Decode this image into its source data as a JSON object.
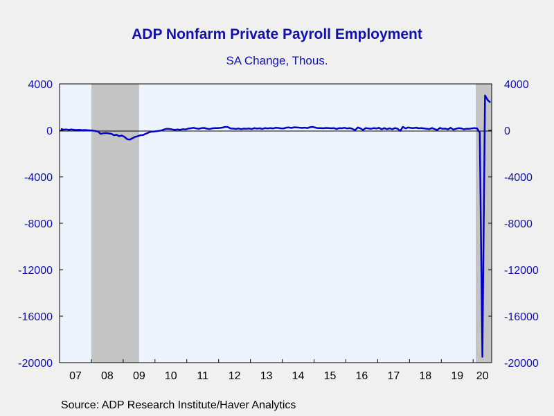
{
  "chart_data": {
    "type": "line",
    "title": "ADP Nonfarm Private Payroll Employment",
    "subtitle": "SA Change, Thous.",
    "source": "Source:  ADP Research Institute/Haver Analytics",
    "ylim": [
      -20000,
      4000
    ],
    "yticks": [
      4000,
      0,
      -4000,
      -8000,
      -12000,
      -16000,
      -20000
    ],
    "ytick_labels": [
      "4000",
      "0",
      "-4000",
      "-8000",
      "-12000",
      "-16000",
      "-20000"
    ],
    "xlim": [
      "2007-01",
      "2020-07"
    ],
    "xtick_labels": [
      "07",
      "08",
      "09",
      "10",
      "11",
      "12",
      "13",
      "14",
      "15",
      "16",
      "17",
      "18",
      "19",
      "20"
    ],
    "grid": false,
    "recessions": [
      {
        "start": "2008-01",
        "end": "2009-06"
      },
      {
        "start": "2020-02",
        "end": "2020-07"
      }
    ],
    "series": [
      {
        "color": "#0000c8",
        "points": [
          [
            "2007-01",
            120
          ],
          [
            "2007-02",
            60
          ],
          [
            "2007-03",
            80
          ],
          [
            "2007-04",
            40
          ],
          [
            "2007-05",
            70
          ],
          [
            "2007-06",
            50
          ],
          [
            "2007-07",
            30
          ],
          [
            "2007-08",
            40
          ],
          [
            "2007-09",
            20
          ],
          [
            "2007-10",
            30
          ],
          [
            "2007-11",
            10
          ],
          [
            "2007-12",
            0
          ],
          [
            "2008-01",
            -20
          ],
          [
            "2008-02",
            -60
          ],
          [
            "2008-03",
            -100
          ],
          [
            "2008-04",
            -300
          ],
          [
            "2008-05",
            -250
          ],
          [
            "2008-06",
            -230
          ],
          [
            "2008-07",
            -260
          ],
          [
            "2008-08",
            -300
          ],
          [
            "2008-09",
            -420
          ],
          [
            "2008-10",
            -380
          ],
          [
            "2008-11",
            -500
          ],
          [
            "2008-12",
            -450
          ],
          [
            "2009-01",
            -560
          ],
          [
            "2009-02",
            -760
          ],
          [
            "2009-03",
            -800
          ],
          [
            "2009-04",
            -680
          ],
          [
            "2009-05",
            -560
          ],
          [
            "2009-06",
            -500
          ],
          [
            "2009-07",
            -420
          ],
          [
            "2009-08",
            -400
          ],
          [
            "2009-09",
            -300
          ],
          [
            "2009-10",
            -200
          ],
          [
            "2009-11",
            -120
          ],
          [
            "2009-12",
            -110
          ],
          [
            "2010-01",
            -80
          ],
          [
            "2010-02",
            -50
          ],
          [
            "2010-03",
            0
          ],
          [
            "2010-04",
            80
          ],
          [
            "2010-05",
            140
          ],
          [
            "2010-06",
            120
          ],
          [
            "2010-07",
            80
          ],
          [
            "2010-08",
            40
          ],
          [
            "2010-09",
            70
          ],
          [
            "2010-10",
            50
          ],
          [
            "2010-11",
            100
          ],
          [
            "2010-12",
            70
          ],
          [
            "2011-01",
            150
          ],
          [
            "2011-02",
            180
          ],
          [
            "2011-03",
            220
          ],
          [
            "2011-04",
            170
          ],
          [
            "2011-05",
            130
          ],
          [
            "2011-06",
            190
          ],
          [
            "2011-07",
            210
          ],
          [
            "2011-08",
            150
          ],
          [
            "2011-09",
            110
          ],
          [
            "2011-10",
            170
          ],
          [
            "2011-11",
            200
          ],
          [
            "2011-12",
            190
          ],
          [
            "2012-01",
            210
          ],
          [
            "2012-02",
            240
          ],
          [
            "2012-03",
            300
          ],
          [
            "2012-04",
            280
          ],
          [
            "2012-05",
            170
          ],
          [
            "2012-06",
            150
          ],
          [
            "2012-07",
            120
          ],
          [
            "2012-08",
            160
          ],
          [
            "2012-09",
            100
          ],
          [
            "2012-10",
            150
          ],
          [
            "2012-11",
            130
          ],
          [
            "2012-12",
            160
          ],
          [
            "2013-01",
            110
          ],
          [
            "2013-02",
            190
          ],
          [
            "2013-03",
            150
          ],
          [
            "2013-04",
            180
          ],
          [
            "2013-05",
            120
          ],
          [
            "2013-06",
            200
          ],
          [
            "2013-07",
            170
          ],
          [
            "2013-08",
            190
          ],
          [
            "2013-09",
            160
          ],
          [
            "2013-10",
            220
          ],
          [
            "2013-11",
            210
          ],
          [
            "2013-12",
            170
          ],
          [
            "2014-01",
            160
          ],
          [
            "2014-02",
            230
          ],
          [
            "2014-03",
            250
          ],
          [
            "2014-04",
            210
          ],
          [
            "2014-05",
            260
          ],
          [
            "2014-06",
            250
          ],
          [
            "2014-07",
            230
          ],
          [
            "2014-08",
            210
          ],
          [
            "2014-09",
            230
          ],
          [
            "2014-10",
            200
          ],
          [
            "2014-11",
            270
          ],
          [
            "2014-12",
            300
          ],
          [
            "2015-01",
            230
          ],
          [
            "2015-02",
            190
          ],
          [
            "2015-03",
            200
          ],
          [
            "2015-04",
            180
          ],
          [
            "2015-05",
            210
          ],
          [
            "2015-06",
            200
          ],
          [
            "2015-07",
            180
          ],
          [
            "2015-08",
            190
          ],
          [
            "2015-09",
            120
          ],
          [
            "2015-10",
            190
          ],
          [
            "2015-11",
            180
          ],
          [
            "2015-12",
            220
          ],
          [
            "2016-01",
            160
          ],
          [
            "2016-02",
            190
          ],
          [
            "2016-03",
            130
          ],
          [
            "2016-04",
            10
          ],
          [
            "2016-05",
            250
          ],
          [
            "2016-06",
            170
          ],
          [
            "2016-07",
            30
          ],
          [
            "2016-08",
            200
          ],
          [
            "2016-09",
            160
          ],
          [
            "2016-10",
            140
          ],
          [
            "2016-11",
            190
          ],
          [
            "2016-12",
            160
          ],
          [
            "2017-01",
            220
          ],
          [
            "2017-02",
            90
          ],
          [
            "2017-03",
            190
          ],
          [
            "2017-04",
            100
          ],
          [
            "2017-05",
            180
          ],
          [
            "2017-06",
            90
          ],
          [
            "2017-07",
            200
          ],
          [
            "2017-08",
            140
          ],
          [
            "2017-09",
            -50
          ],
          [
            "2017-10",
            300
          ],
          [
            "2017-11",
            160
          ],
          [
            "2017-12",
            250
          ],
          [
            "2018-01",
            210
          ],
          [
            "2018-02",
            200
          ],
          [
            "2018-03",
            230
          ],
          [
            "2018-04",
            180
          ],
          [
            "2018-05",
            190
          ],
          [
            "2018-06",
            170
          ],
          [
            "2018-07",
            130
          ],
          [
            "2018-08",
            110
          ],
          [
            "2018-09",
            200
          ],
          [
            "2018-10",
            100
          ],
          [
            "2018-11",
            30
          ],
          [
            "2018-12",
            210
          ],
          [
            "2019-01",
            130
          ],
          [
            "2019-02",
            150
          ],
          [
            "2019-03",
            80
          ],
          [
            "2019-04",
            220
          ],
          [
            "2019-05",
            60
          ],
          [
            "2019-06",
            130
          ],
          [
            "2019-07",
            190
          ],
          [
            "2019-08",
            170
          ],
          [
            "2019-09",
            90
          ],
          [
            "2019-10",
            140
          ],
          [
            "2019-11",
            130
          ],
          [
            "2019-12",
            170
          ],
          [
            "2020-01",
            190
          ],
          [
            "2020-02",
            170
          ],
          [
            "2020-03",
            -200
          ],
          [
            "2020-04",
            -19500
          ],
          [
            "2020-05",
            3000
          ],
          [
            "2020-06",
            2600
          ],
          [
            "2020-07",
            2400
          ]
        ]
      }
    ]
  }
}
